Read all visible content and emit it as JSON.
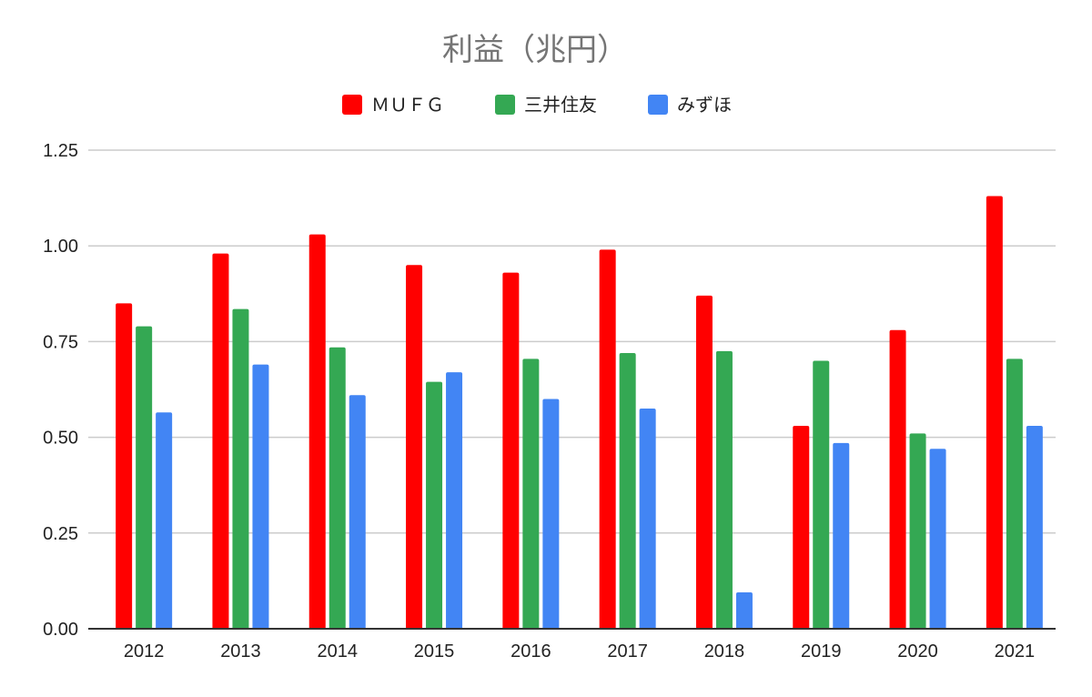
{
  "chart_data": {
    "type": "bar",
    "title": "利益（兆円）",
    "categories": [
      "2012",
      "2013",
      "2014",
      "2015",
      "2016",
      "2017",
      "2018",
      "2019",
      "2020",
      "2021"
    ],
    "series": [
      {
        "name": "ＭＵＦＧ",
        "color": "#ff0000",
        "values": [
          0.85,
          0.98,
          1.03,
          0.95,
          0.93,
          0.99,
          0.87,
          0.53,
          0.78,
          1.13
        ]
      },
      {
        "name": "三井住友",
        "color": "#34a853",
        "values": [
          0.79,
          0.835,
          0.735,
          0.645,
          0.705,
          0.72,
          0.725,
          0.7,
          0.51,
          0.705
        ]
      },
      {
        "name": "みずほ",
        "color": "#4285f4",
        "values": [
          0.565,
          0.69,
          0.61,
          0.67,
          0.6,
          0.575,
          0.095,
          0.485,
          0.47,
          0.53
        ]
      }
    ],
    "y_ticks": [
      "0.00",
      "0.25",
      "0.50",
      "0.75",
      "1.00",
      "1.25"
    ],
    "ylim": [
      0,
      1.25
    ],
    "grid": true,
    "legend_position": "top-center"
  }
}
